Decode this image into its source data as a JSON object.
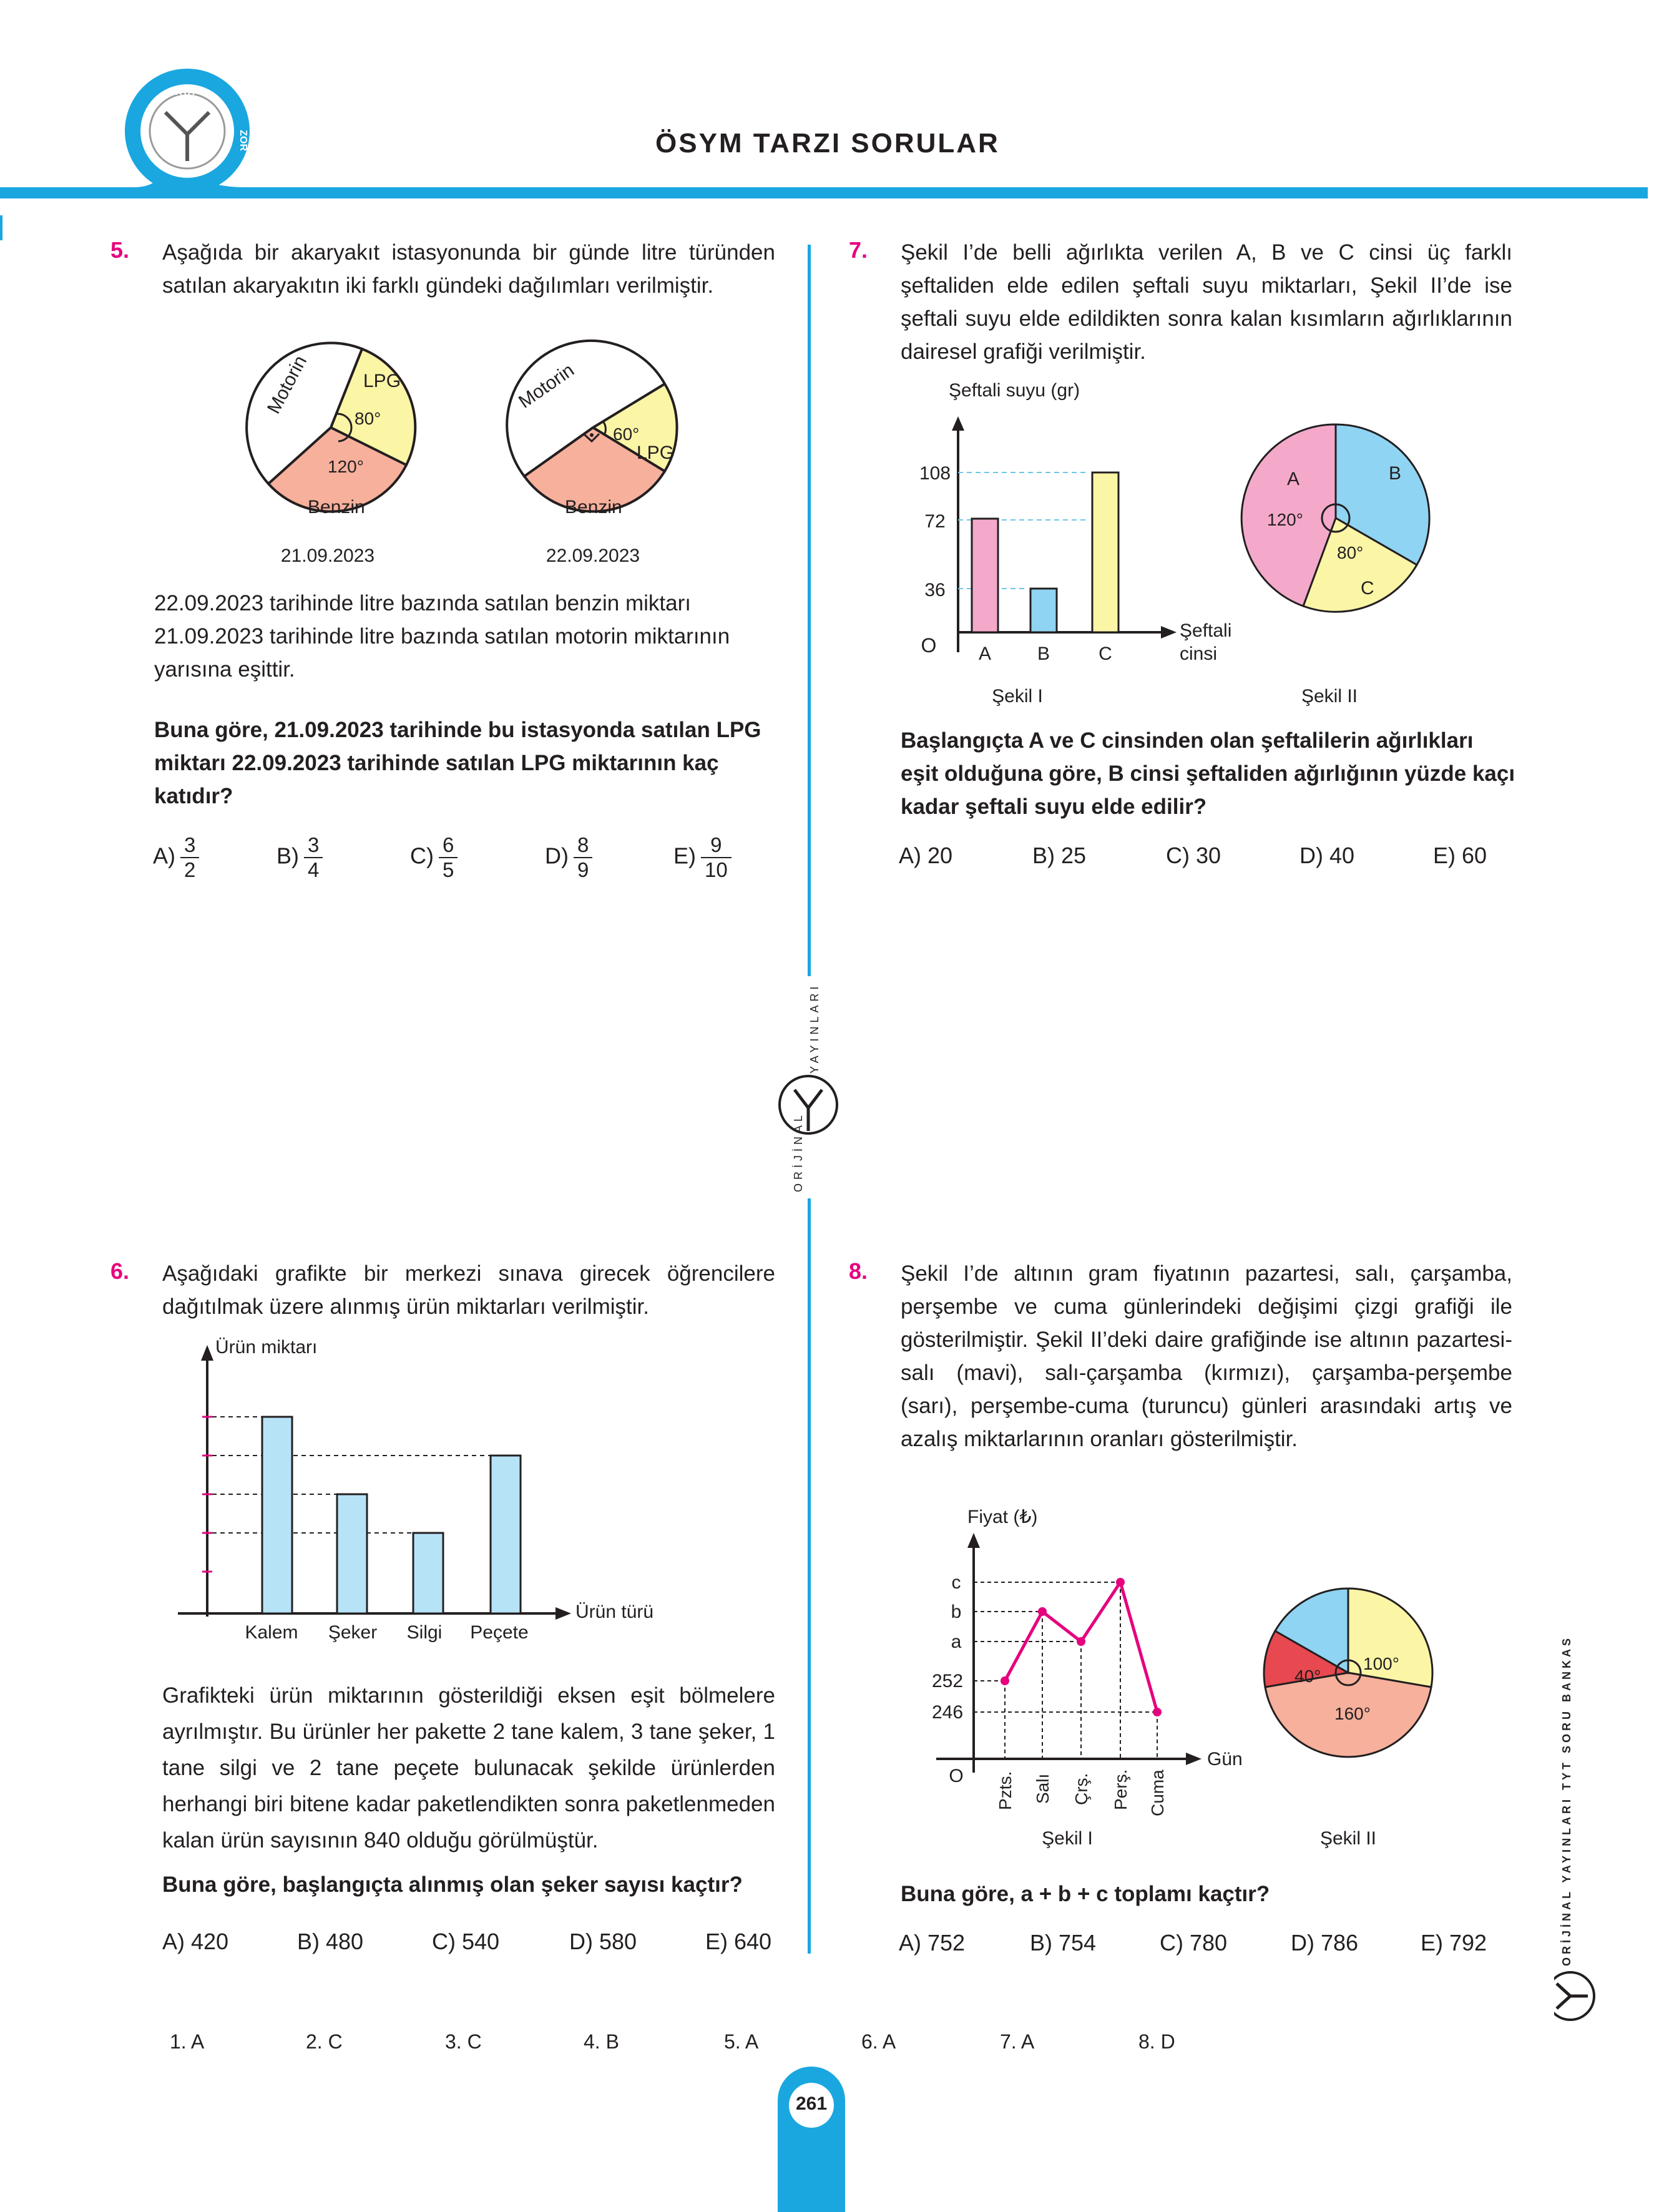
{
  "header": {
    "title": "ÖSYM TARZI SORULAR",
    "badge_top": "ORTA",
    "badge_right": "ZOR"
  },
  "side_text": "ORİJİNAL YAYINLARI TYT SORU BANKASI",
  "center_logo": {
    "left": "ORİJİNAL",
    "right": "YAYINLARI"
  },
  "page_number": "261",
  "colors": {
    "accent": "#1aa7e0",
    "number": "#e6007e",
    "pink": "#f4a9cb",
    "blue": "#8fd4f2",
    "yellow": "#fbf5a6",
    "salmon": "#f6b09c",
    "red": "#e8484f"
  },
  "q5": {
    "num": "5.",
    "intro": "Aşağıda bir akaryakıt istasyonunda bir günde litre türünden satılan akaryakıtın iki farklı gündeki dağılımları verilmiştir.",
    "body": "22.09.2023 tarihinde litre bazında satılan benzin miktarı 21.09.2023 tarihinde litre bazında satılan motorin miktarının yarısına eşittir.",
    "question": "Buna göre, 21.09.2023 tarihinde bu istasyonda satılan LPG miktarı 22.09.2023 tarihinde satılan LPG miktarının kaç katıdır?",
    "chart1": {
      "motorin": "Motorin",
      "lpg": "LPG",
      "benzin": "Benzin",
      "angle_lpg": "80°",
      "angle_benzin": "120°",
      "date": "21.09.2023"
    },
    "chart2": {
      "motorin": "Motorin",
      "lpg": "LPG",
      "benzin": "Benzin",
      "angle_lpg": "60°",
      "date": "22.09.2023"
    },
    "options": [
      {
        "label": "A)",
        "num": "3",
        "den": "2"
      },
      {
        "label": "B)",
        "num": "3",
        "den": "4"
      },
      {
        "label": "C)",
        "num": "6",
        "den": "5"
      },
      {
        "label": "D)",
        "num": "8",
        "den": "9"
      },
      {
        "label": "E)",
        "num": "9",
        "den": "10"
      }
    ]
  },
  "q6": {
    "num": "6.",
    "intro": "Aşağıdaki grafikte bir merkezi sınava girecek öğrencilere dağıtılmak üzere alınmış ürün miktarları verilmiştir.",
    "ylabel": "Ürün miktarı",
    "xlabel": "Ürün türü",
    "categories": [
      "Kalem",
      "Şeker",
      "Silgi",
      "Peçete"
    ],
    "body": "Grafikteki ürün miktarının gösterildiği eksen eşit bölmelere ayrılmıştır. Bu ürünler her pakette 2 tane kalem, 3 tane şeker, 1 tane silgi ve 2 tane peçete bulunacak şekilde ürünlerden herhangi biri bitene kadar paketlendikten sonra paketlenmeden kalan ürün sayısının 840 olduğu görülmüştür.",
    "question": "Buna göre, başlangıçta alınmış olan şeker sayısı kaçtır?",
    "options": [
      "A) 420",
      "B) 480",
      "C) 540",
      "D) 580",
      "E) 640"
    ]
  },
  "q7": {
    "num": "7.",
    "intro": "Şekil I’de belli ağırlıkta verilen A, B ve C cinsi üç farklı şeftaliden elde edilen şeftali suyu miktarları, Şekil II’de ise şeftali suyu elde edildikten sonra kalan kısımların ağırlıklarının dairesel grafiği verilmiştir.",
    "ylabel": "Şeftali suyu (gr)",
    "xlabel_1": "Şeftali",
    "xlabel_2": "cinsi",
    "origin": "O",
    "yticks": [
      "108",
      "72",
      "36"
    ],
    "categories": [
      "A",
      "B",
      "C"
    ],
    "pie": {
      "a": "A",
      "b": "B",
      "c": "C",
      "angle_a": "120°",
      "angle_c": "80°"
    },
    "fig1": "Şekil I",
    "fig2": "Şekil II",
    "question": "Başlangıçta A ve C cinsinden olan şeftalilerin ağırlıkları eşit olduğuna göre, B cinsi şeftaliden ağırlığının yüzde kaçı kadar şeftali suyu elde edilir?",
    "options": [
      "A) 20",
      "B) 25",
      "C) 30",
      "D) 40",
      "E) 60"
    ]
  },
  "q8": {
    "num": "8.",
    "intro": "Şekil I’de altının gram fiyatının pazartesi, salı, çarşamba, perşembe ve cuma günlerindeki değişimi çizgi grafiği ile gösterilmiştir. Şekil II’deki daire grafiğinde ise altının pazartesi-salı (mavi), salı-çarşamba (kırmızı), çarşamba-perşembe (sarı), perşembe-cuma (turuncu) günleri arasındaki artış ve azalış miktarlarının oranları gösterilmiştir.",
    "ylabel": "Fiyat (₺)",
    "xlabel": "Gün",
    "origin": "O",
    "yticks": [
      "c",
      "b",
      "a",
      "252",
      "246"
    ],
    "days": [
      "Pzts.",
      "Salı",
      "Çrş.",
      "Perş.",
      "Cuma"
    ],
    "pie": {
      "angle_red": "40°",
      "angle_yellow": "100°",
      "angle_salmon": "160°"
    },
    "fig1": "Şekil I",
    "fig2": "Şekil II",
    "question": "Buna göre, a + b + c toplamı kaçtır?",
    "options": [
      "A) 752",
      "B) 754",
      "C) 780",
      "D) 786",
      "E) 792"
    ]
  },
  "answers": [
    "1. A",
    "2. C",
    "3. C",
    "4. B",
    "5. A",
    "6. A",
    "7. A",
    "8. D"
  ]
}
